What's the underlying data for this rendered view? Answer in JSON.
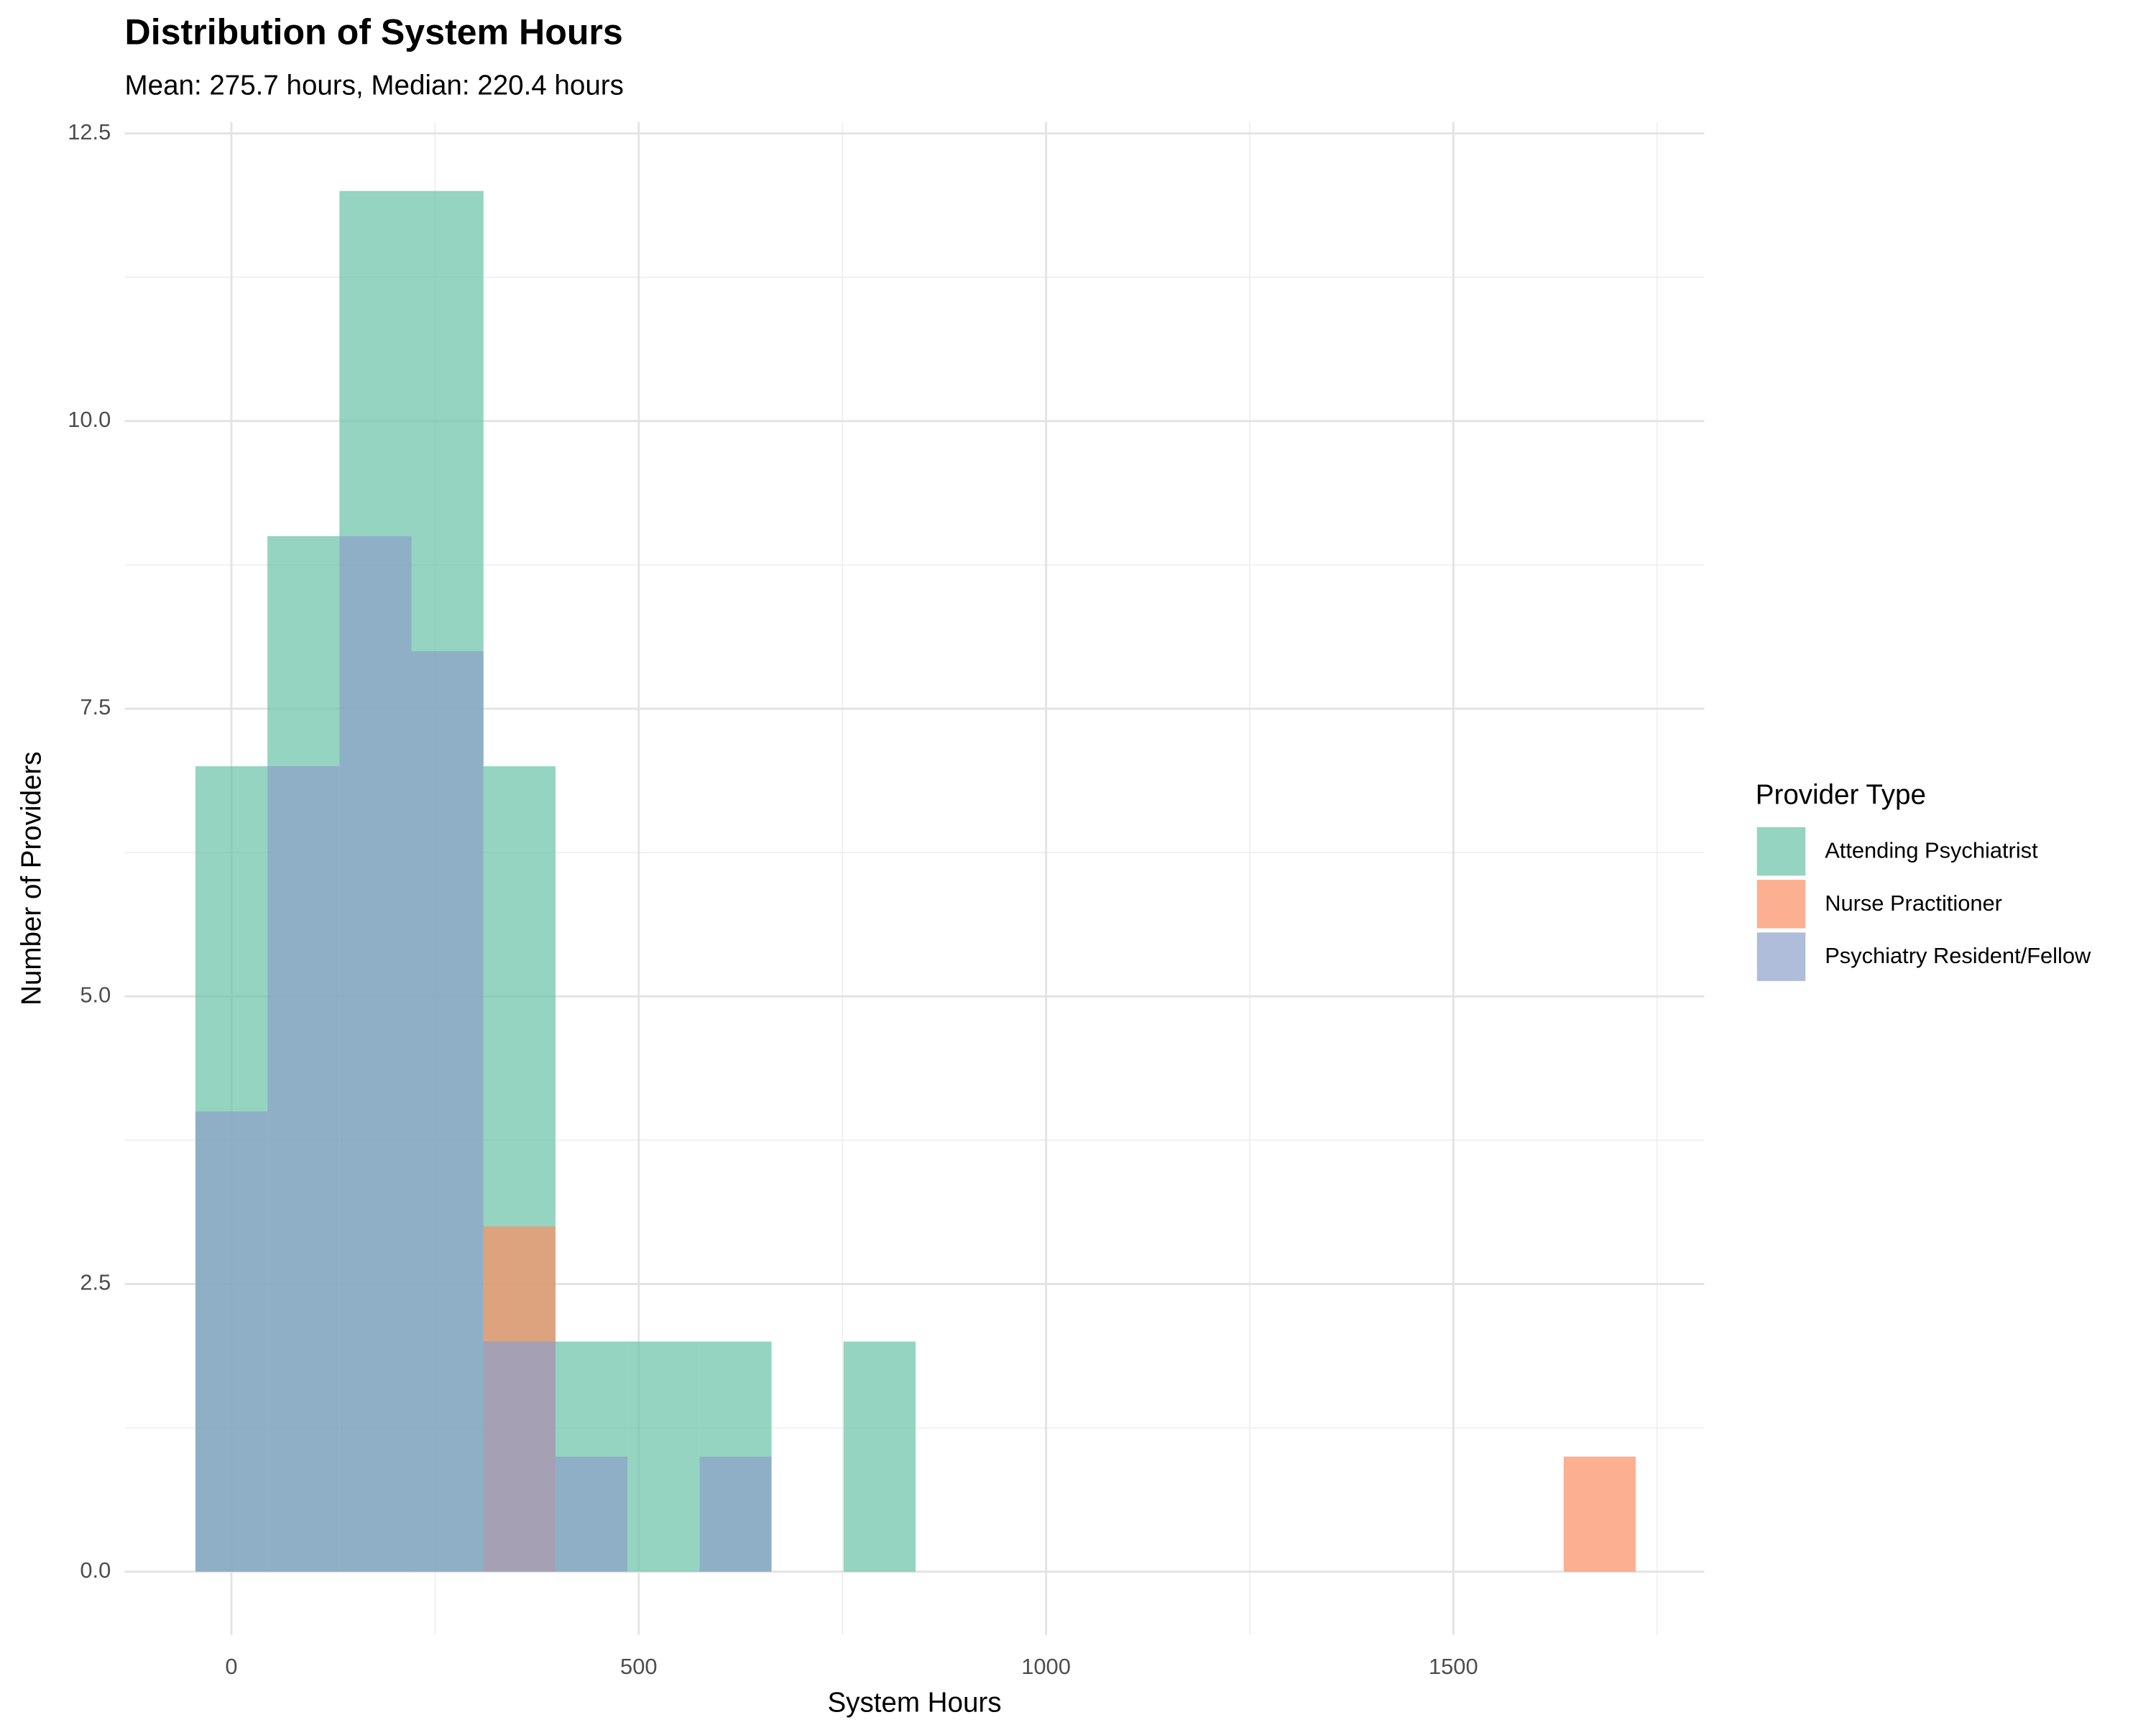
{
  "chart_data": {
    "type": "histogram",
    "title": "Distribution of System Hours",
    "subtitle": "Mean: 275.7 hours, Median: 220.4 hours",
    "x_label": "System Hours",
    "y_label": "Number of Providers",
    "legend_title": "Provider Type",
    "legend_position": "right",
    "grid": true,
    "bins": [
      -44.2,
      44.2,
      132.6,
      221,
      309.4,
      397.8,
      486.2,
      574.6,
      663,
      751.4,
      839.8,
      928.2,
      1016.6,
      1105,
      1193.4,
      1281.8,
      1370.2,
      1458.6,
      1547,
      1635.4,
      1723.8
    ],
    "series": [
      {
        "name": "Attending Psychiatrist",
        "color": "#66c2a5",
        "values": [
          7,
          9,
          12,
          12,
          7,
          2,
          2,
          2,
          0,
          2,
          0,
          0,
          0,
          0,
          0,
          0,
          0,
          0,
          0,
          0
        ]
      },
      {
        "name": "Nurse Practitioner",
        "color": "#fc8d62",
        "values": [
          0,
          0,
          0,
          0,
          3,
          0,
          0,
          0,
          0,
          0,
          0,
          0,
          0,
          0,
          0,
          0,
          0,
          0,
          0,
          1
        ]
      },
      {
        "name": "Psychiatry Resident/Fellow",
        "color": "#8da0cb",
        "values": [
          4,
          7,
          9,
          8,
          2,
          1,
          0,
          1,
          0,
          0,
          0,
          0,
          0,
          0,
          0,
          0,
          0,
          0,
          0,
          0
        ]
      }
    ],
    "xlim": [
      -131,
      1808
    ],
    "ylim": [
      -0.55,
      12.6
    ],
    "xticks": [
      0,
      500,
      1000,
      1500
    ],
    "yticks": [
      {
        "value": 0,
        "label": "0.0"
      },
      2.5,
      {
        "value": 5,
        "label": "5.0"
      },
      7.5,
      {
        "value": 10,
        "label": "10.0"
      },
      12.5
    ]
  }
}
